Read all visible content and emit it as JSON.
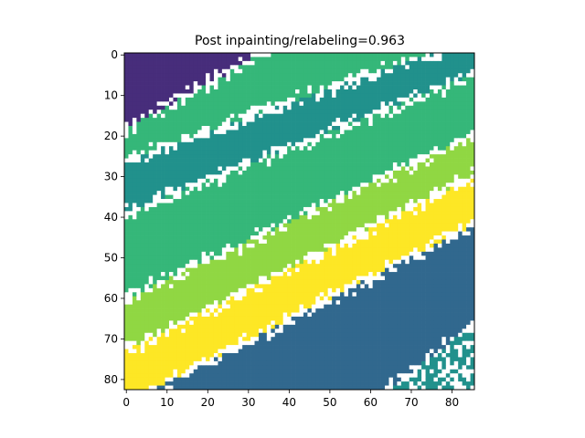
{
  "chart_data": {
    "type": "heatmap",
    "title": "Post inpainting/relabeling=0.963",
    "xlabel": "",
    "ylabel": "",
    "xlim": [
      0,
      86
    ],
    "ylim": [
      0,
      83
    ],
    "y_inverted": true,
    "grid": false,
    "x_ticks": [
      0,
      10,
      20,
      30,
      40,
      50,
      60,
      70,
      80
    ],
    "y_ticks": [
      0,
      10,
      20,
      30,
      40,
      50,
      60,
      70,
      80
    ],
    "colormap": "viridis",
    "classes": [
      {
        "id": 0,
        "color": "#472d7b"
      },
      {
        "id": 1,
        "color": "#31688e"
      },
      {
        "id": 2,
        "color": "#21918c"
      },
      {
        "id": 3,
        "color": "#35b779"
      },
      {
        "id": 4,
        "color": "#90d743"
      },
      {
        "id": 5,
        "color": "#fde725"
      },
      {
        "id": -1,
        "color": "#ffffff"
      }
    ],
    "bands": [
      {
        "class": 0,
        "boundary_row_at_x0": 0,
        "boundary_row_at_x85": 0
      },
      {
        "class": 3,
        "boundary_row_at_x0": 18,
        "boundary_row_at_x85": -28
      },
      {
        "class": 2,
        "boundary_row_at_x0": 26,
        "boundary_row_at_x85": -4
      },
      {
        "class": 3,
        "boundary_row_at_x0": 39,
        "boundary_row_at_x85": 5
      },
      {
        "class": 4,
        "boundary_row_at_x0": 60,
        "boundary_row_at_x85": 20
      },
      {
        "class": 5,
        "boundary_row_at_x0": 73,
        "boundary_row_at_x85": 30
      },
      {
        "class": 1,
        "boundary_row_at_x0": 86,
        "boundary_row_at_x85": 42
      },
      {
        "class": 2,
        "boundary_row_at_x0": 130,
        "boundary_row_at_x85": 67
      }
    ],
    "nrows": 83,
    "ncols": 86
  }
}
